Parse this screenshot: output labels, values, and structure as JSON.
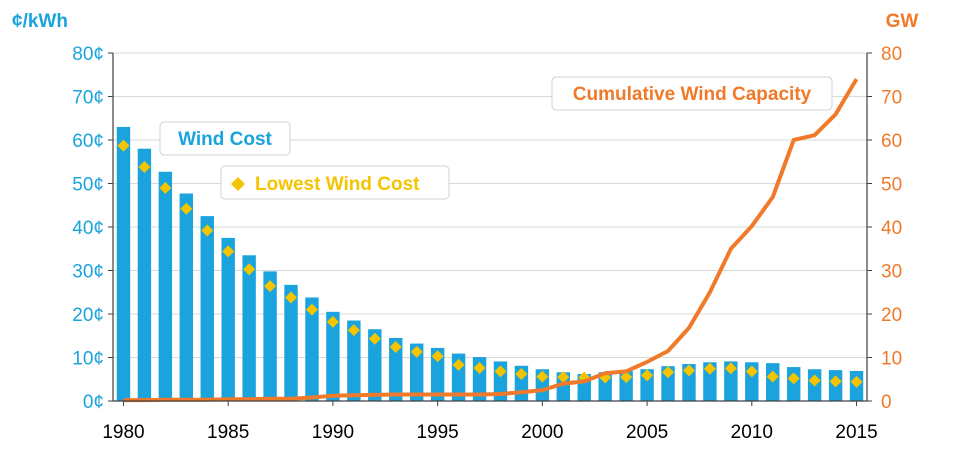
{
  "chart_data": {
    "type": "bar",
    "left_axis_unit": "¢/kWh",
    "right_axis_unit": "GW",
    "x": [
      1980,
      1981,
      1982,
      1983,
      1984,
      1985,
      1986,
      1987,
      1988,
      1989,
      1990,
      1991,
      1992,
      1993,
      1994,
      1995,
      1996,
      1997,
      1998,
      1999,
      2000,
      2001,
      2002,
      2003,
      2004,
      2005,
      2006,
      2007,
      2008,
      2009,
      2010,
      2011,
      2012,
      2013,
      2014,
      2015
    ],
    "x_ticks": [
      "1980",
      "1985",
      "1990",
      "1995",
      "2000",
      "2005",
      "2010",
      "2015"
    ],
    "x_tick_values": [
      1980,
      1985,
      1990,
      1995,
      2000,
      2005,
      2010,
      2015
    ],
    "left_ylim": [
      0,
      80
    ],
    "left_ticks": [
      "0¢",
      "10¢",
      "20¢",
      "30¢",
      "40¢",
      "50¢",
      "60¢",
      "70¢",
      "80¢"
    ],
    "right_ylim": [
      0,
      80
    ],
    "right_ticks": [
      "0",
      "10",
      "20",
      "30",
      "40",
      "50",
      "60",
      "70",
      "80"
    ],
    "gridlines": true,
    "series": [
      {
        "name": "Wind Cost",
        "kind": "bar",
        "axis": "left",
        "color": "#1AA3DC",
        "values": [
          63,
          58,
          52.7,
          47.7,
          42.5,
          37.5,
          33.5,
          29.8,
          26.7,
          23.8,
          20.5,
          18.5,
          16.5,
          14.5,
          13.2,
          12.2,
          10.9,
          10.1,
          9.1,
          8.1,
          7.3,
          6.6,
          6.2,
          6.6,
          6.9,
          7.3,
          8.0,
          8.5,
          8.9,
          9.1,
          8.9,
          8.7,
          7.8,
          7.3,
          7.1,
          6.9
        ]
      },
      {
        "name": "Lowest Wind Cost",
        "kind": "diamond",
        "axis": "left",
        "color": "#F5C400",
        "values": [
          58.7,
          53.8,
          49.0,
          44.2,
          39.2,
          34.4,
          30.3,
          26.4,
          23.8,
          21.0,
          18.2,
          16.3,
          14.3,
          12.4,
          11.3,
          10.3,
          8.3,
          7.6,
          6.8,
          6.2,
          5.6,
          5.5,
          5.4,
          5.4,
          5.5,
          5.9,
          6.6,
          7.0,
          7.4,
          7.5,
          6.8,
          5.6,
          5.2,
          4.7,
          4.5,
          4.4
        ]
      },
      {
        "name": "Cumulative Wind Capacity",
        "kind": "line",
        "axis": "right",
        "color": "#F07A2A",
        "values": [
          0.2,
          0.2,
          0.3,
          0.3,
          0.3,
          0.4,
          0.4,
          0.5,
          0.5,
          0.8,
          1.2,
          1.3,
          1.4,
          1.5,
          1.5,
          1.5,
          1.5,
          1.5,
          1.6,
          2.0,
          2.5,
          4.0,
          4.5,
          6.4,
          6.8,
          9.0,
          11.5,
          16.8,
          25.0,
          35.0,
          40.2,
          46.9,
          60.0,
          61.1,
          65.9,
          74.0
        ]
      }
    ],
    "legend_labels": {
      "wind_cost": "Wind Cost",
      "lowest_wind_cost": "Lowest Wind Cost",
      "capacity": "Cumulative Wind Capacity"
    }
  }
}
